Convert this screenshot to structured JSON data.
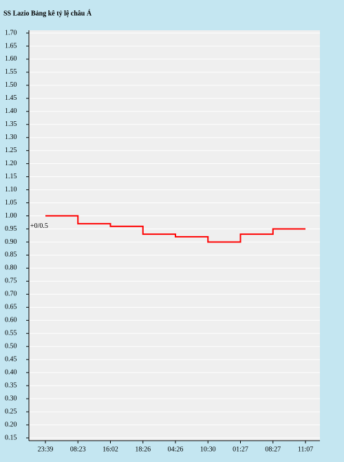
{
  "chart_data": {
    "type": "step",
    "title": "SS Lazio Bảng kê tỷ lệ châu Á",
    "categories": [
      "23:39",
      "08:23",
      "16:02",
      "18:26",
      "04:26",
      "10:30",
      "01:27",
      "08:27",
      "11:07"
    ],
    "series": [
      {
        "name": "+0/0.5",
        "color": "#ff0000",
        "values": [
          1.0,
          0.97,
          0.96,
          0.93,
          0.92,
          0.9,
          0.93,
          0.95,
          0.95
        ]
      }
    ],
    "ylim": [
      0.15,
      1.7
    ],
    "yticks": [
      {
        "value": 0.15,
        "label": "0.15"
      },
      {
        "value": 0.2,
        "label": "0.20"
      },
      {
        "value": 0.25,
        "label": "0.25"
      },
      {
        "value": 0.3,
        "label": "0.30"
      },
      {
        "value": 0.35,
        "label": "0.35"
      },
      {
        "value": 0.4,
        "label": "0.40"
      },
      {
        "value": 0.45,
        "label": "0.45"
      },
      {
        "value": 0.5,
        "label": "0.50"
      },
      {
        "value": 0.55,
        "label": "0.55"
      },
      {
        "value": 0.6,
        "label": "0.60"
      },
      {
        "value": 0.65,
        "label": "0.65"
      },
      {
        "value": 0.7,
        "label": "0.70"
      },
      {
        "value": 0.75,
        "label": "0.75"
      },
      {
        "value": 0.8,
        "label": "0.80"
      },
      {
        "value": 0.85,
        "label": "0.85"
      },
      {
        "value": 0.9,
        "label": "0.90"
      },
      {
        "value": 0.95,
        "label": "0.95"
      },
      {
        "value": 1.0,
        "label": "1.00"
      },
      {
        "value": 1.05,
        "label": "1.05"
      },
      {
        "value": 1.1,
        "label": "1.10"
      },
      {
        "value": 1.15,
        "label": "1.15"
      },
      {
        "value": 1.2,
        "label": "1.20"
      },
      {
        "value": 1.25,
        "label": "1.25"
      },
      {
        "value": 1.3,
        "label": "1.30"
      },
      {
        "value": 1.35,
        "label": "1.35"
      },
      {
        "value": 1.4,
        "label": "1.40"
      },
      {
        "value": 1.45,
        "label": "1.45"
      },
      {
        "value": 1.5,
        "label": "1.50"
      },
      {
        "value": 1.55,
        "label": "1.55"
      },
      {
        "value": 1.6,
        "label": "1.60"
      },
      {
        "value": 1.65,
        "label": "1.65"
      },
      {
        "value": 1.7,
        "label": "1.70"
      }
    ],
    "grid": true
  }
}
